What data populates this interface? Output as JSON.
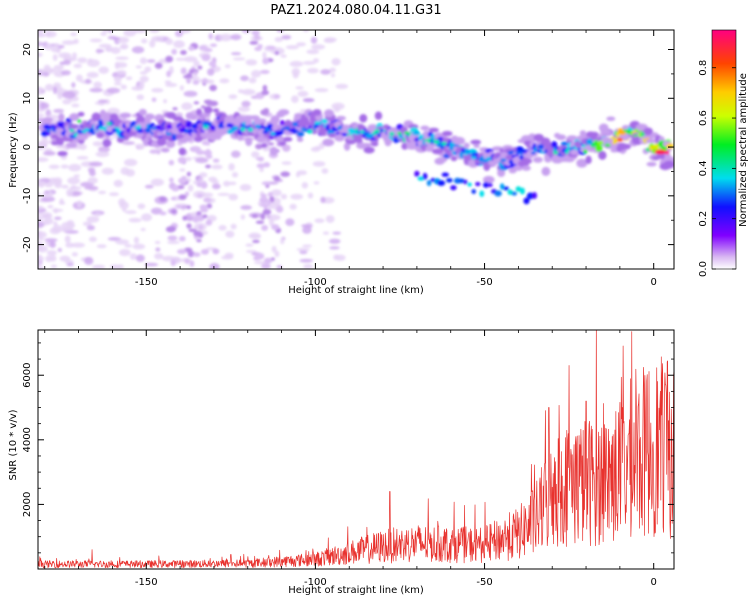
{
  "title": "PAZ1.2024.080.04.11.G31",
  "chart_data": [
    {
      "type": "heatmap",
      "name": "spectrogram",
      "xlabel": "Height of straight line (km)",
      "ylabel": "Frequency (Hz)",
      "xlim": [
        -182,
        6
      ],
      "ylim": [
        -25,
        24
      ],
      "xticks": [
        -150,
        -100,
        -50,
        0
      ],
      "yticks": [
        -20,
        -10,
        0,
        10,
        20
      ],
      "colorbar": {
        "label": "Normalized spectral amplitude",
        "range": [
          0,
          0.95
        ],
        "ticks": [
          "0.0",
          "0.2",
          "0.4",
          "0.6",
          "0.8"
        ],
        "colormap": "rainbow-purple-to-red"
      },
      "ridge": {
        "x": [
          -180,
          -165,
          -150,
          -140,
          -130,
          -120,
          -110,
          -100,
          -90,
          -80,
          -70,
          -60,
          -50,
          -45,
          -40,
          -35,
          -30,
          -25,
          -20,
          -15,
          -10,
          -6,
          -3,
          0,
          5
        ],
        "freq": [
          3,
          4,
          4,
          3,
          5,
          4,
          3,
          5,
          3,
          3,
          2,
          0,
          -2,
          -3,
          -2,
          0,
          -1,
          -1,
          0,
          1,
          2,
          3.5,
          2,
          0,
          -1
        ],
        "amplitude": [
          0.3,
          0.35,
          0.3,
          0.25,
          0.3,
          0.3,
          0.25,
          0.3,
          0.35,
          0.35,
          0.35,
          0.35,
          0.3,
          0.3,
          0.25,
          0.3,
          0.3,
          0.35,
          0.4,
          0.5,
          0.65,
          0.6,
          0.6,
          0.8,
          0.9
        ]
      }
    },
    {
      "type": "line",
      "name": "snr",
      "xlabel": "Height of straight line (km)",
      "ylabel": "SNR (10 * v/v)",
      "xlim": [
        -182,
        6
      ],
      "ylim": [
        0,
        7400
      ],
      "xticks": [
        -150,
        -100,
        -50,
        0
      ],
      "yticks": [
        2000,
        4000,
        6000
      ],
      "color": "#e8322e",
      "envelope": {
        "x": [
          -182,
          -150,
          -120,
          -100,
          -90,
          -80,
          -70,
          -60,
          -50,
          -40,
          -35,
          -30,
          -25,
          -20,
          -15,
          -10,
          -6,
          -3,
          0,
          5
        ],
        "y": [
          150,
          150,
          170,
          300,
          500,
          700,
          800,
          750,
          750,
          1100,
          1500,
          2400,
          2600,
          2700,
          2800,
          3000,
          3500,
          3600,
          3800,
          3700
        ]
      },
      "peaks": [
        {
          "x": -6.5,
          "y": 7350
        },
        {
          "x": -25,
          "y": 6300
        },
        {
          "x": -31,
          "y": 5000
        },
        {
          "x": 3.5,
          "y": 5700
        },
        {
          "x": -20,
          "y": 5200
        },
        {
          "x": -78,
          "y": 2400
        },
        {
          "x": -166,
          "y": 600
        },
        {
          "x": -125,
          "y": 450
        }
      ]
    }
  ]
}
